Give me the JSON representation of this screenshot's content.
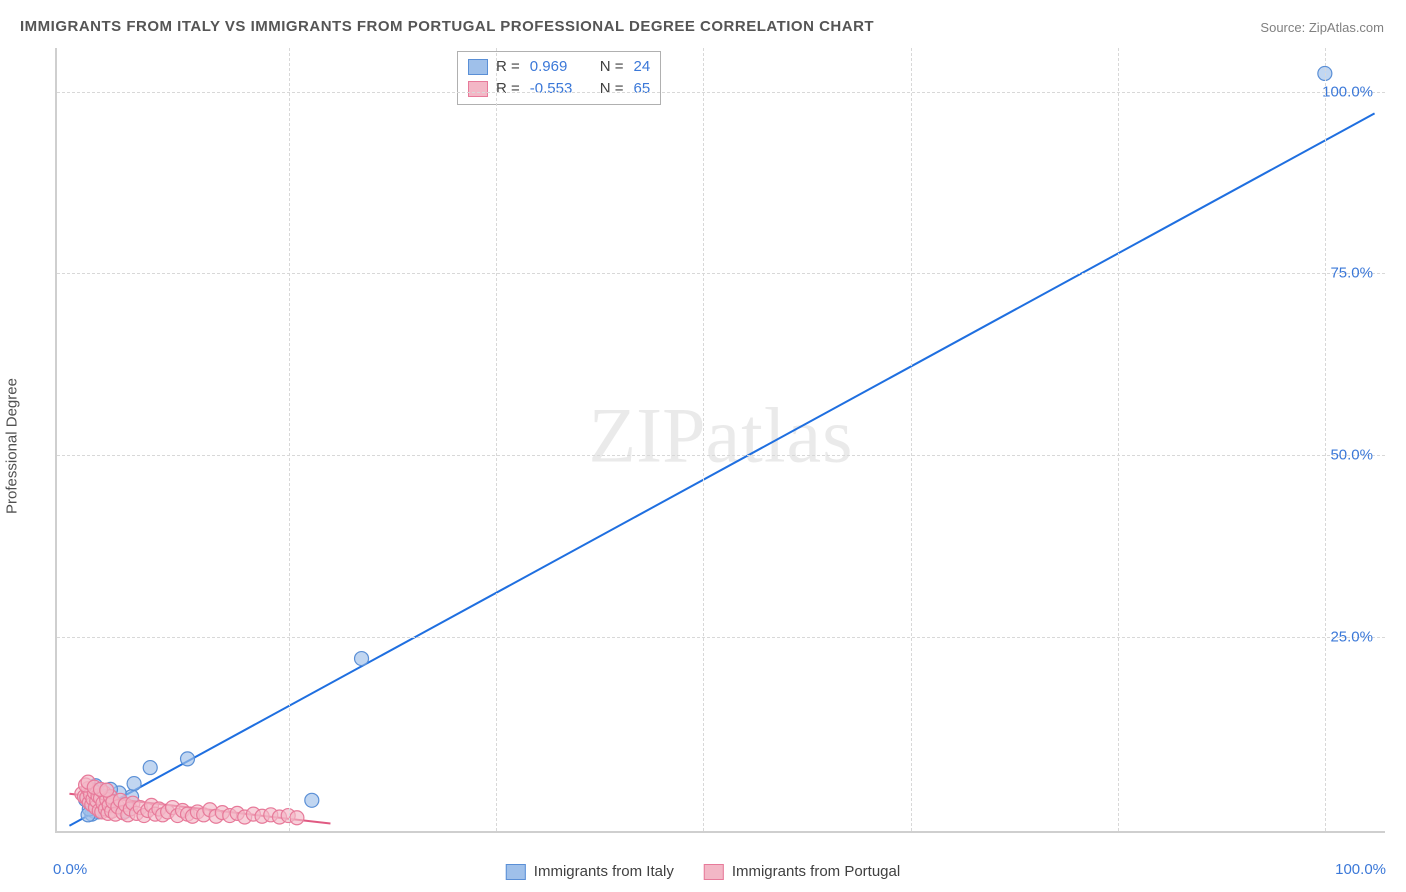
{
  "title": "IMMIGRANTS FROM ITALY VS IMMIGRANTS FROM PORTUGAL PROFESSIONAL DEGREE CORRELATION CHART",
  "source_label": "Source:",
  "source_name": "ZipAtlas.com",
  "ylabel": "Professional Degree",
  "watermark": "ZIPatlas",
  "chart": {
    "type": "scatter",
    "background_color": "#ffffff",
    "grid_color": "#d8d8d8",
    "axis_color": "#cfcfcf",
    "tick_label_color": "#3b78d8",
    "xlim": [
      -2,
      105
    ],
    "ylim": [
      -2,
      106
    ],
    "x_ticks": [
      0,
      16.67,
      33.33,
      50,
      66.67,
      83.33,
      100
    ],
    "y_ticks": [
      25,
      50,
      75,
      100
    ],
    "y_tick_labels": [
      "25.0%",
      "50.0%",
      "75.0%",
      "100.0%"
    ],
    "x_tick_labels_shown": {
      "0": "0.0%",
      "100": "100.0%"
    },
    "series": [
      {
        "name": "Immigrants from Italy",
        "marker_fill": "#9fc0ea",
        "marker_stroke": "#5a8fd6",
        "marker_opacity": 0.65,
        "line_color": "#1f6fe0",
        "line_width": 2,
        "R": "0.969",
        "N": "24",
        "trend": {
          "x1": -1,
          "y1": -1,
          "x2": 104,
          "y2": 97
        },
        "points": [
          [
            100,
            102.5
          ],
          [
            22.5,
            22
          ],
          [
            8.5,
            8.2
          ],
          [
            5.5,
            7.0
          ],
          [
            4.0,
            3.0
          ],
          [
            3.0,
            3.5
          ],
          [
            2.5,
            2.0
          ],
          [
            2.3,
            4.0
          ],
          [
            2.0,
            1.5
          ],
          [
            1.8,
            3.0
          ],
          [
            1.5,
            2.3
          ],
          [
            1.3,
            0.9
          ],
          [
            1.1,
            4.5
          ],
          [
            1.0,
            1.0
          ],
          [
            0.9,
            3.9
          ],
          [
            0.8,
            0.6
          ],
          [
            0.7,
            2.1
          ],
          [
            0.6,
            1.3
          ],
          [
            0.55,
            3.3
          ],
          [
            0.5,
            0.5
          ],
          [
            18.5,
            2.5
          ],
          [
            4.2,
            4.8
          ],
          [
            3.5,
            1.0
          ],
          [
            0.3,
            2.6
          ]
        ]
      },
      {
        "name": "Immigrants from Portugal",
        "marker_fill": "#f3b7c6",
        "marker_stroke": "#e77a9a",
        "marker_opacity": 0.65,
        "line_color": "#e05a82",
        "line_width": 2,
        "R": "-0.553",
        "N": "65",
        "trend": {
          "x1": -1,
          "y1": 3.4,
          "x2": 20,
          "y2": -0.7
        },
        "points": [
          [
            0.0,
            3.4
          ],
          [
            0.2,
            3.0
          ],
          [
            0.4,
            2.9
          ],
          [
            0.5,
            4.1
          ],
          [
            0.6,
            2.2
          ],
          [
            0.7,
            3.3
          ],
          [
            0.8,
            1.9
          ],
          [
            0.9,
            2.7
          ],
          [
            1.0,
            3.6
          ],
          [
            1.1,
            1.5
          ],
          [
            1.2,
            2.4
          ],
          [
            1.3,
            3.1
          ],
          [
            1.4,
            1.1
          ],
          [
            1.5,
            2.8
          ],
          [
            1.6,
            0.9
          ],
          [
            1.7,
            2.1
          ],
          [
            1.8,
            3.5
          ],
          [
            1.9,
            1.3
          ],
          [
            2.0,
            2.6
          ],
          [
            2.1,
            0.7
          ],
          [
            2.2,
            1.8
          ],
          [
            2.3,
            3.0
          ],
          [
            2.4,
            1.0
          ],
          [
            2.5,
            2.3
          ],
          [
            2.7,
            0.6
          ],
          [
            2.9,
            1.6
          ],
          [
            3.1,
            2.5
          ],
          [
            3.3,
            0.8
          ],
          [
            3.5,
            1.9
          ],
          [
            3.7,
            0.5
          ],
          [
            3.9,
            1.3
          ],
          [
            4.1,
            2.1
          ],
          [
            4.4,
            0.7
          ],
          [
            4.7,
            1.5
          ],
          [
            5.0,
            0.4
          ],
          [
            5.3,
            1.1
          ],
          [
            5.6,
            1.8
          ],
          [
            5.9,
            0.6
          ],
          [
            6.2,
            1.3
          ],
          [
            6.5,
            0.5
          ],
          [
            6.9,
            0.9
          ],
          [
            7.3,
            1.5
          ],
          [
            7.7,
            0.4
          ],
          [
            8.1,
            1.1
          ],
          [
            8.5,
            0.6
          ],
          [
            8.9,
            0.3
          ],
          [
            9.3,
            0.9
          ],
          [
            9.8,
            0.5
          ],
          [
            10.3,
            1.2
          ],
          [
            10.8,
            0.3
          ],
          [
            11.3,
            0.8
          ],
          [
            11.9,
            0.4
          ],
          [
            12.5,
            0.7
          ],
          [
            13.1,
            0.2
          ],
          [
            13.8,
            0.6
          ],
          [
            14.5,
            0.3
          ],
          [
            15.2,
            0.5
          ],
          [
            15.9,
            0.2
          ],
          [
            16.6,
            0.4
          ],
          [
            17.3,
            0.1
          ],
          [
            0.3,
            4.6
          ],
          [
            0.5,
            5.0
          ],
          [
            1.0,
            4.3
          ],
          [
            1.5,
            4.0
          ],
          [
            2.0,
            3.9
          ]
        ]
      }
    ]
  },
  "legend_top": {
    "position": "top-center"
  },
  "legend_bottom_items": [
    "Immigrants from Italy",
    "Immigrants from Portugal"
  ]
}
